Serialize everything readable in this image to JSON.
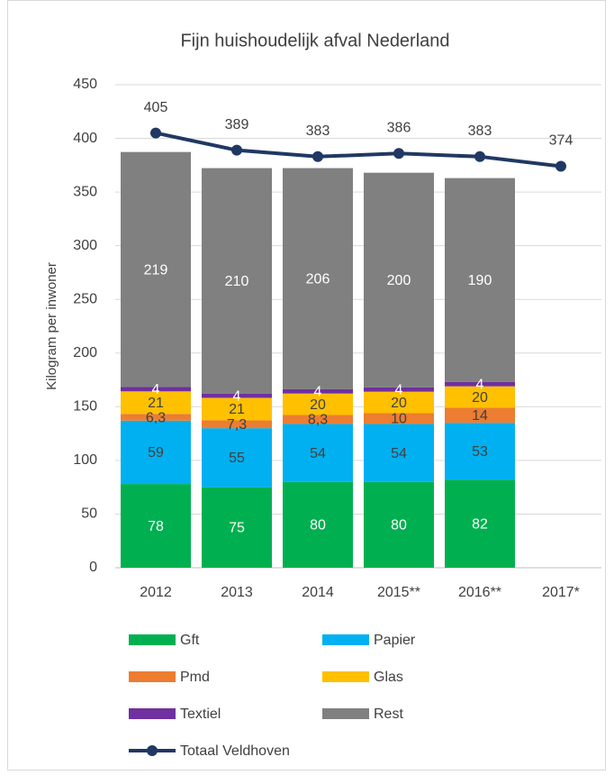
{
  "chart_data": {
    "type": "bar",
    "stacked": true,
    "title": "Fijn huishoudelijk afval Nederland",
    "y_label": "Kilogram per inwoner",
    "categories": [
      "2012",
      "2013",
      "2014",
      "2015**",
      "2016**",
      "2017*"
    ],
    "series": [
      {
        "name": "Gft",
        "color": "#00b050",
        "label_color": "#ffffff",
        "values": [
          78,
          75,
          80,
          80,
          82,
          null
        ]
      },
      {
        "name": "Papier",
        "color": "#00b0f0",
        "label_color": "#404040",
        "values": [
          59,
          55,
          54,
          54,
          53,
          null
        ]
      },
      {
        "name": "Pmd",
        "color": "#ed7d31",
        "label_color": "#404040",
        "values": [
          6.3,
          7.3,
          8.3,
          10,
          14,
          null
        ],
        "value_labels": [
          "6,3",
          "7,3",
          "8,3",
          "10",
          "14",
          null
        ]
      },
      {
        "name": "Glas",
        "color": "#ffc000",
        "label_color": "#404040",
        "values": [
          21,
          21,
          20,
          20,
          20,
          null
        ]
      },
      {
        "name": "Textiel",
        "color": "#7030a0",
        "label_color": "#ffffff",
        "values": [
          4,
          4,
          4,
          4,
          4,
          null
        ]
      },
      {
        "name": "Rest",
        "color": "#808080",
        "label_color": "#ffffff",
        "values": [
          219,
          210,
          206,
          200,
          190,
          null
        ]
      },
      {
        "name": "Totaal Veldhoven",
        "type": "line",
        "color": "#203864",
        "label_color": "#404040",
        "values": [
          405,
          389,
          383,
          386,
          383,
          374
        ]
      }
    ],
    "ylim": [
      0,
      450
    ],
    "yticks": [
      0,
      50,
      100,
      150,
      200,
      250,
      300,
      350,
      400,
      450
    ],
    "grid": true
  }
}
